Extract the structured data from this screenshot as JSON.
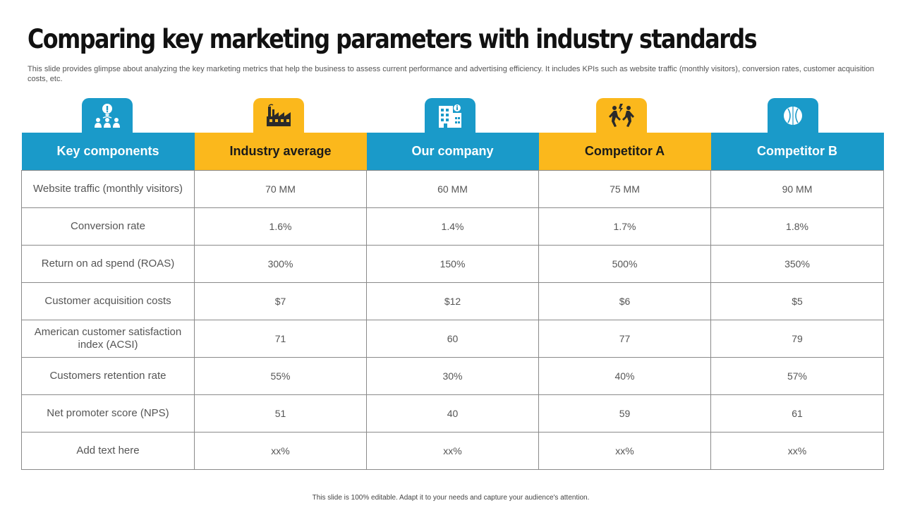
{
  "title": "Comparing key marketing parameters with industry standards",
  "subtitle": "This slide provides glimpse about analyzing the key marketing metrics that help the business to assess current performance and advertising efficiency. It includes KPIs such as website traffic (monthly visitors), conversion rates, customer acquisition costs, etc.",
  "columns": [
    {
      "label": "Key components",
      "icon": "idea-team-icon",
      "color": "#1a9ac9"
    },
    {
      "label": "Industry average",
      "icon": "factory-icon",
      "color": "#fbb81c"
    },
    {
      "label": "Our company",
      "icon": "office-building-icon",
      "color": "#1a9ac9"
    },
    {
      "label": "Competitor A",
      "icon": "competition-icon",
      "color": "#fbb81c"
    },
    {
      "label": "Competitor B",
      "icon": "sport-ball-icon",
      "color": "#1a9ac9"
    }
  ],
  "rows": [
    {
      "label": "Website traffic (monthly visitors)",
      "values": [
        "70 MM",
        "60 MM",
        "75 MM",
        "90 MM"
      ]
    },
    {
      "label": "Conversion rate",
      "values": [
        "1.6%",
        "1.4%",
        "1.7%",
        "1.8%"
      ]
    },
    {
      "label": "Return on ad spend (ROAS)",
      "values": [
        "300%",
        "150%",
        "500%",
        "350%"
      ]
    },
    {
      "label": "Customer acquisition costs",
      "values": [
        "$7",
        "$12",
        "$6",
        "$5"
      ]
    },
    {
      "label": "American customer satisfaction index (ACSI)",
      "values": [
        "71",
        "60",
        "77",
        "79"
      ]
    },
    {
      "label": "Customers retention rate",
      "values": [
        "55%",
        "30%",
        "40%",
        "57%"
      ]
    },
    {
      "label": "Net promoter score (NPS)",
      "values": [
        "51",
        "40",
        "59",
        "61"
      ]
    },
    {
      "label": "Add text here",
      "values": [
        "xx%",
        "xx%",
        "xx%",
        "xx%"
      ]
    }
  ],
  "footer": "This slide is 100% editable. Adapt it to your needs and capture your audience's attention."
}
